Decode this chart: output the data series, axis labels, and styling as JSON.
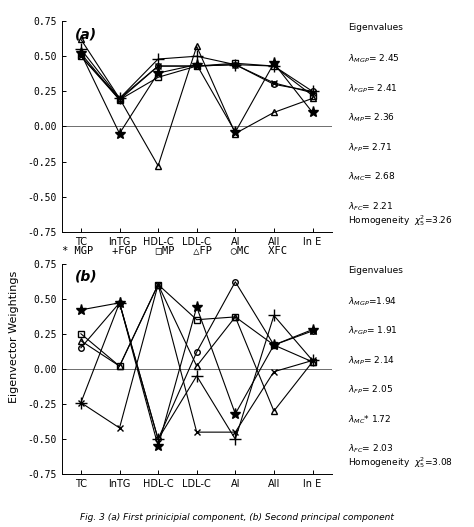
{
  "x_labels": [
    "TC",
    "lnTG",
    "HDL-C",
    "LDL-C",
    "AI",
    "AII",
    "ln E"
  ],
  "panel_a": {
    "title": "(a)",
    "MGP": [
      0.52,
      -0.05,
      0.38,
      0.44,
      -0.04,
      0.45,
      0.1
    ],
    "FGP": [
      0.55,
      0.2,
      0.48,
      0.5,
      0.44,
      0.43,
      0.25
    ],
    "MP": [
      0.5,
      0.19,
      0.35,
      0.43,
      0.45,
      0.43,
      0.22
    ],
    "FP": [
      0.62,
      0.2,
      -0.28,
      0.57,
      -0.05,
      0.1,
      0.2
    ],
    "MC": [
      0.52,
      0.19,
      0.43,
      0.43,
      0.44,
      0.3,
      0.25
    ],
    "FC": [
      0.5,
      0.2,
      0.43,
      0.43,
      0.44,
      0.31,
      0.24
    ],
    "eigen_lines": [
      "Eigenvalues",
      "λMGP= 2.45",
      "λFGP= 2.41",
      "λMP= 2.36",
      "λFP= 2.71",
      "λMC= 2.68",
      "λFC= 2.21"
    ],
    "homogeneity": "Homogeneity  χ²5 = 3.26"
  },
  "panel_b": {
    "title": "(b)",
    "MGP": [
      0.42,
      0.47,
      -0.55,
      0.44,
      -0.32,
      0.17,
      0.28
    ],
    "FGP": [
      -0.24,
      0.47,
      -0.5,
      -0.05,
      -0.5,
      0.38,
      0.06
    ],
    "MP": [
      0.25,
      0.02,
      0.6,
      0.35,
      0.37,
      0.17,
      0.05
    ],
    "FP": [
      0.2,
      0.02,
      0.6,
      0.02,
      0.37,
      -0.3,
      0.05
    ],
    "MC": [
      0.15,
      0.47,
      -0.5,
      0.12,
      0.62,
      0.17,
      0.27
    ],
    "FC": [
      -0.24,
      -0.42,
      0.6,
      -0.45,
      -0.45,
      -0.02,
      0.06
    ],
    "eigen_lines": [
      "Eigenvalues",
      "λMGP=1.94",
      "λFGP= 1.91",
      "λMP= 2.14",
      "λFP= 2.05",
      "λMC* 1.72",
      "λFC= 2.03"
    ],
    "homogeneity": "Homogeneity  χ²5 = 3.08"
  },
  "ylabel": "Eigenvector Weightings",
  "ylim": [
    -0.75,
    0.75
  ],
  "yticks": [
    -0.75,
    -0.5,
    -0.25,
    0.0,
    0.25,
    0.5,
    0.75
  ],
  "ytick_labels": [
    "-0.75",
    "-0.50",
    "-0.25",
    "0.00",
    "0.25",
    "0.50",
    "0.75"
  ],
  "series_keys": [
    "MGP",
    "FGP",
    "MP",
    "FP",
    "MC",
    "FC"
  ],
  "markers": [
    "*",
    "+",
    "s",
    "^",
    "o",
    "x"
  ],
  "marker_sizes": [
    8,
    8,
    4,
    5,
    4,
    5
  ],
  "marker_filled": [
    true,
    true,
    false,
    false,
    false,
    false
  ],
  "legend_str": "* MGP   +FGP   □MP   △FP   ○MC   XFC",
  "figure_caption": "Fig. 3 (a) First prinicipial component, (b) Second principal component"
}
